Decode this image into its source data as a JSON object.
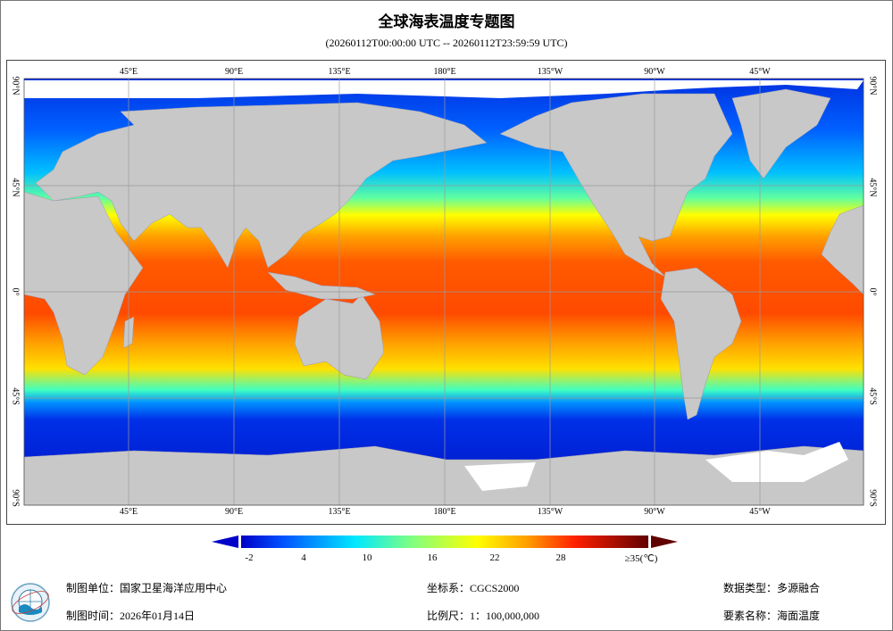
{
  "title": "全球海表温度专题图",
  "subtitle": "(20260112T00:00:00 UTC -- 20260112T23:59:59 UTC)",
  "map": {
    "projection": "equirectangular, centered 180°",
    "lon_labels": [
      "45°E",
      "90°E",
      "135°E",
      "180°E",
      "135°W",
      "90°W",
      "45°W"
    ],
    "lat_labels": [
      "90°N",
      "45°N",
      "0°",
      "45°S",
      "90°S"
    ],
    "land_color": "#c8c8c8",
    "ice_color": "#ffffff",
    "grid": true
  },
  "colorbar": {
    "ticks": [
      "-2",
      "4",
      "10",
      "16",
      "22",
      "28",
      "≥35(℃)"
    ],
    "range": [
      -2,
      35
    ],
    "unit": "℃",
    "colors": [
      "#0000c8",
      "#0050ff",
      "#00c8ff",
      "#40ffd0",
      "#a0ff60",
      "#ffff00",
      "#ffb000",
      "#ff6000",
      "#ff1000",
      "#a00000",
      "#600000"
    ]
  },
  "footer": {
    "unit": "制图单位：国家卫星海洋应用中心",
    "date": "制图时间：2026年01月14日",
    "crs": "坐标系：CGCS2000",
    "scale": "比例尺：1：100,000,000",
    "data_type": "数据类型：多源融合",
    "element": "要素名称：海面温度"
  }
}
